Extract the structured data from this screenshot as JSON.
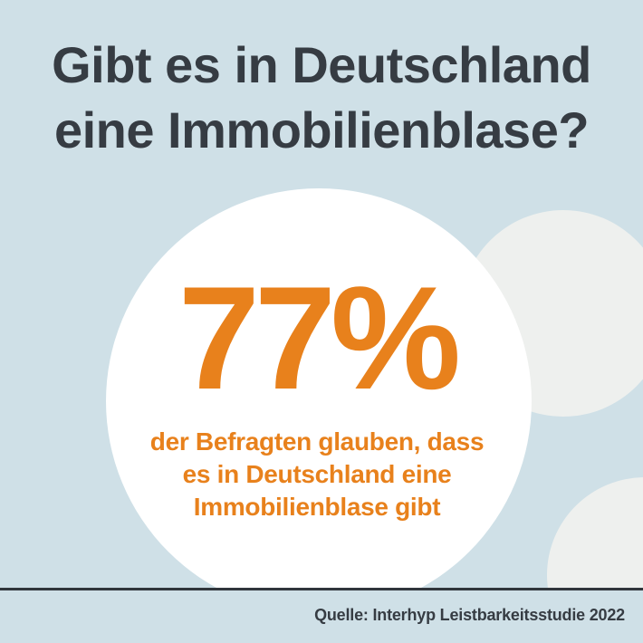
{
  "title": {
    "line1": "Gibt es in Deutschland",
    "line2": "eine Immobilienblase?"
  },
  "stat": {
    "value": "77%",
    "description_lines": [
      "der Befragten glauben, dass",
      "es in Deutschland eine",
      "Immobilienblase gibt"
    ]
  },
  "footer": {
    "source": "Quelle: Interhyp Leistbarkeitsstudie 2022"
  },
  "colors": {
    "background": "#cfe0e7",
    "accent_orange": "#e8811c",
    "headline_dark": "#363c43",
    "stat_circle_white": "#ffffff",
    "decor_circle_gray": "#eef0ee",
    "divider_dark": "#30363c"
  },
  "chart_data": {
    "type": "table",
    "title": "Gibt es in Deutschland eine Immobilienblase?",
    "categories": [
      "der Befragten glauben, dass es in Deutschland eine Immobilienblase gibt"
    ],
    "values": [
      77
    ],
    "unit": "%",
    "source": "Quelle: Interhyp Leistbarkeitsstudie 2022"
  }
}
